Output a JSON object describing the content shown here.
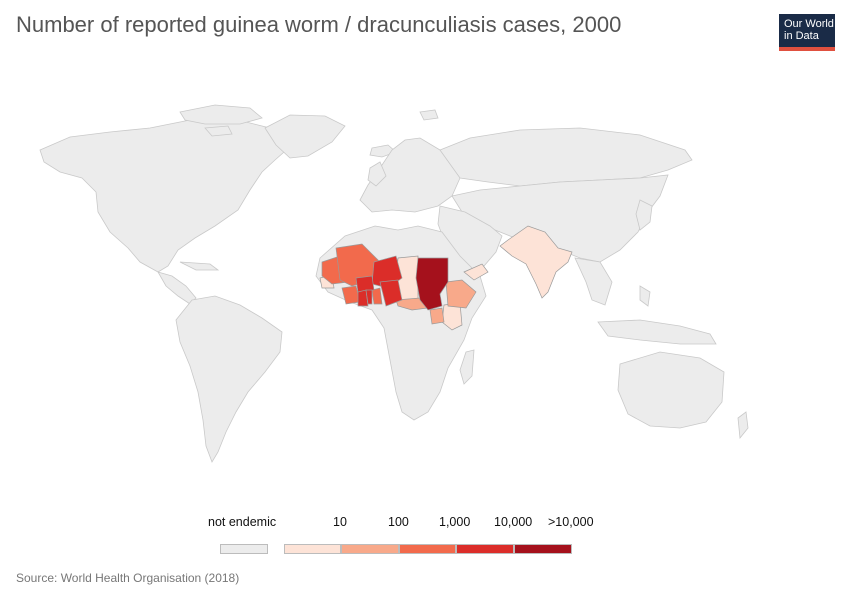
{
  "title": "Number of reported guinea worm / dracunculiasis cases, 2000",
  "logo": {
    "line1": "Our World",
    "line2": "in Data"
  },
  "source": "Source: World Health Organisation (2018)",
  "colors": {
    "land": "#ececec",
    "border": "#c9c9c9",
    "bin_10": "#fde3d7",
    "bin_100": "#f8a98a",
    "bin_1000": "#f26a4c",
    "bin_10000": "#db2d29",
    "bin_gt10000": "#a5111c"
  },
  "legend": {
    "not_endemic_label": "not endemic",
    "bins": [
      {
        "label": "10",
        "color": "#fde3d7"
      },
      {
        "label": "100",
        "color": "#f8a98a"
      },
      {
        "label": "1,000",
        "color": "#f26a4c"
      },
      {
        "label": "10,000",
        "color": "#db2d29"
      },
      {
        "label": ">10,000",
        "color": "#a5111c"
      }
    ]
  },
  "map_data": {
    "year": 2000,
    "bins_by_country": [
      {
        "country": "Sudan",
        "bin": ">10,000"
      },
      {
        "country": "Ghana",
        "bin": "10,000"
      },
      {
        "country": "Nigeria",
        "bin": "10,000"
      },
      {
        "country": "Togo",
        "bin": "10,000"
      },
      {
        "country": "Niger",
        "bin": "10,000"
      },
      {
        "country": "Burkina Faso",
        "bin": "10,000"
      },
      {
        "country": "Mali",
        "bin": "1,000"
      },
      {
        "country": "Mauritania",
        "bin": "1,000"
      },
      {
        "country": "Benin",
        "bin": "1,000"
      },
      {
        "country": "Côte d'Ivoire",
        "bin": "1,000"
      },
      {
        "country": "Ethiopia",
        "bin": "100"
      },
      {
        "country": "Central African Republic",
        "bin": "100"
      },
      {
        "country": "Uganda",
        "bin": "100"
      },
      {
        "country": "Chad",
        "bin": "10"
      },
      {
        "country": "Kenya",
        "bin": "10"
      },
      {
        "country": "Yemen",
        "bin": "10"
      },
      {
        "country": "India",
        "bin": "10"
      },
      {
        "country": "Pakistan",
        "bin": "10"
      },
      {
        "country": "Senegal",
        "bin": "10"
      }
    ]
  }
}
